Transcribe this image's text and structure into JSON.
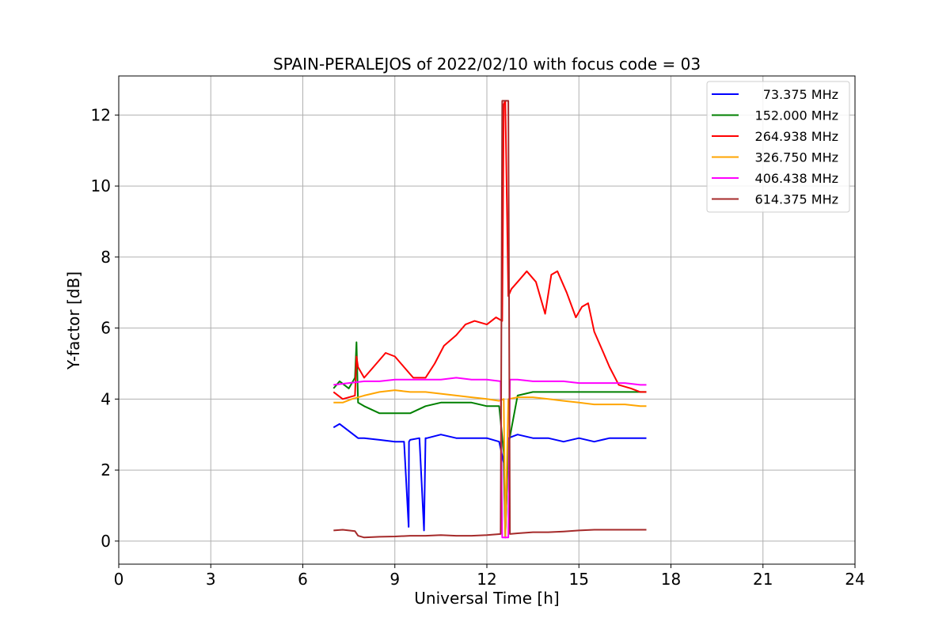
{
  "chart_data": {
    "type": "line",
    "title": "SPAIN-PERALEJOS of 2022/02/10 with focus code = 03",
    "xlabel": "Universal Time [h]",
    "ylabel": "Y-factor [dB]",
    "xlim": [
      0,
      24
    ],
    "ylim": [
      -0.65,
      13.1
    ],
    "xticks": [
      "0",
      "3",
      "6",
      "9",
      "12",
      "15",
      "18",
      "21",
      "24"
    ],
    "yticks": [
      "0",
      "2",
      "4",
      "6",
      "8",
      "10",
      "12"
    ],
    "grid": true,
    "legend_position": "top-right",
    "series": [
      {
        "name": "73.375 MHz",
        "color": "#0000ff",
        "x": [
          7.0,
          7.2,
          7.5,
          7.8,
          8.0,
          8.5,
          9.0,
          9.3,
          9.45,
          9.46,
          9.5,
          9.8,
          9.95,
          10.0,
          10.05,
          10.5,
          11.0,
          11.5,
          12.0,
          12.4,
          12.55,
          12.6,
          12.7,
          13.0,
          13.5,
          14.0,
          14.5,
          15.0,
          15.5,
          16.0,
          16.5,
          17.0,
          17.2
        ],
        "y": [
          3.2,
          3.3,
          3.1,
          2.9,
          2.9,
          2.85,
          2.8,
          2.8,
          0.4,
          2.8,
          2.85,
          2.9,
          0.3,
          2.9,
          2.9,
          3.0,
          2.9,
          2.9,
          2.9,
          2.8,
          2.2,
          0.1,
          2.9,
          3.0,
          2.9,
          2.9,
          2.8,
          2.9,
          2.8,
          2.9,
          2.9,
          2.9,
          2.9
        ]
      },
      {
        "name": "152.000 MHz",
        "color": "#008000",
        "x": [
          7.0,
          7.2,
          7.5,
          7.7,
          7.75,
          7.8,
          8.0,
          8.5,
          9.0,
          9.5,
          10.0,
          10.5,
          11.0,
          11.5,
          12.0,
          12.4,
          12.55,
          12.6,
          12.7,
          13.0,
          13.5,
          14.0,
          14.5,
          15.0,
          15.5,
          16.0,
          16.5,
          17.0,
          17.2
        ],
        "y": [
          4.3,
          4.5,
          4.3,
          4.6,
          5.6,
          3.9,
          3.8,
          3.6,
          3.6,
          3.6,
          3.8,
          3.9,
          3.9,
          3.9,
          3.8,
          3.8,
          2.5,
          0.2,
          2.7,
          4.1,
          4.2,
          4.2,
          4.2,
          4.2,
          4.2,
          4.2,
          4.2,
          4.2,
          4.2
        ]
      },
      {
        "name": "264.938 MHz",
        "color": "#ff0000",
        "x": [
          7.0,
          7.3,
          7.7,
          7.75,
          7.8,
          8.0,
          8.3,
          8.7,
          9.0,
          9.3,
          9.6,
          10.0,
          10.3,
          10.6,
          11.0,
          11.3,
          11.6,
          12.0,
          12.3,
          12.5,
          12.55,
          12.6,
          12.7,
          12.8,
          13.0,
          13.3,
          13.6,
          13.9,
          14.1,
          14.3,
          14.6,
          14.9,
          15.1,
          15.3,
          15.5,
          15.8,
          16.0,
          16.3,
          16.7,
          17.0,
          17.2
        ],
        "y": [
          4.2,
          4.0,
          4.1,
          5.2,
          4.9,
          4.6,
          4.9,
          5.3,
          5.2,
          4.9,
          4.6,
          4.6,
          5.0,
          5.5,
          5.8,
          6.1,
          6.2,
          6.1,
          6.3,
          6.2,
          12.3,
          12.4,
          6.9,
          7.1,
          7.3,
          7.6,
          7.3,
          6.4,
          7.5,
          7.6,
          7.0,
          6.3,
          6.6,
          6.7,
          5.9,
          5.3,
          4.9,
          4.4,
          4.3,
          4.2,
          4.2
        ]
      },
      {
        "name": "326.750 MHz",
        "color": "#ffa500",
        "x": [
          7.0,
          7.3,
          7.6,
          8.0,
          8.5,
          9.0,
          9.5,
          10.0,
          10.5,
          11.0,
          11.5,
          12.0,
          12.4,
          12.55,
          12.6,
          12.7,
          13.0,
          13.5,
          14.0,
          14.5,
          15.0,
          15.5,
          16.0,
          16.5,
          17.0,
          17.2
        ],
        "y": [
          3.9,
          3.9,
          4.0,
          4.1,
          4.2,
          4.25,
          4.2,
          4.2,
          4.15,
          4.1,
          4.05,
          4.0,
          3.95,
          4.0,
          0.1,
          4.0,
          4.05,
          4.05,
          4.0,
          3.95,
          3.9,
          3.85,
          3.85,
          3.85,
          3.8,
          3.8
        ]
      },
      {
        "name": "406.438 MHz",
        "color": "#ff00ff",
        "x": [
          7.0,
          7.5,
          8.0,
          8.5,
          9.0,
          9.5,
          10.0,
          10.5,
          11.0,
          11.5,
          12.0,
          12.45,
          12.5,
          12.55,
          12.7,
          12.75,
          13.0,
          13.5,
          14.0,
          14.5,
          15.0,
          15.5,
          16.0,
          16.5,
          17.0,
          17.2
        ],
        "y": [
          4.4,
          4.45,
          4.5,
          4.5,
          4.55,
          4.55,
          4.55,
          4.55,
          4.6,
          4.55,
          4.55,
          4.5,
          0.1,
          0.1,
          0.1,
          4.55,
          4.55,
          4.5,
          4.5,
          4.5,
          4.45,
          4.45,
          4.45,
          4.45,
          4.4,
          4.4
        ]
      },
      {
        "name": "614.375 MHz",
        "color": "#a52a2a",
        "x": [
          7.0,
          7.3,
          7.7,
          7.8,
          8.0,
          8.5,
          9.0,
          9.5,
          10.0,
          10.5,
          11.0,
          11.5,
          12.0,
          12.45,
          12.5,
          12.55,
          12.7,
          12.75,
          13.0,
          13.5,
          14.0,
          14.5,
          15.0,
          15.5,
          16.0,
          16.5,
          17.0,
          17.2
        ],
        "y": [
          0.3,
          0.32,
          0.28,
          0.15,
          0.1,
          0.12,
          0.13,
          0.15,
          0.15,
          0.17,
          0.15,
          0.15,
          0.17,
          0.2,
          12.4,
          12.4,
          12.4,
          0.2,
          0.22,
          0.25,
          0.25,
          0.27,
          0.3,
          0.32,
          0.32,
          0.32,
          0.32,
          0.32
        ]
      }
    ]
  }
}
